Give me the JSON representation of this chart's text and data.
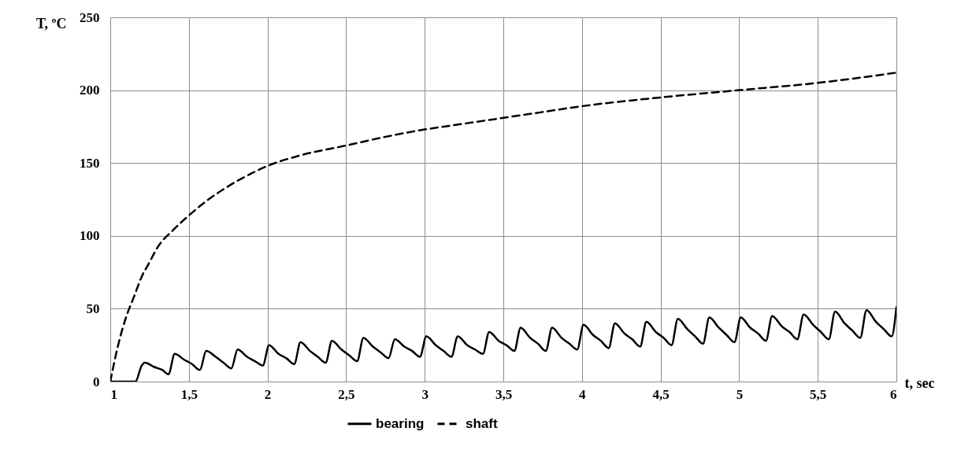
{
  "chart_data": {
    "type": "line",
    "xlabel": "t, sec",
    "ylabel": "T, ºC",
    "xlim": [
      1,
      6
    ],
    "xticks": [
      1,
      {
        "value": 1.5,
        "label": "1,5"
      },
      2,
      {
        "value": 2.5,
        "label": "2,5"
      },
      3,
      {
        "value": 3.5,
        "label": "3,5"
      },
      4,
      {
        "value": 4.5,
        "label": "4,5"
      },
      5,
      {
        "value": 5.5,
        "label": "5,5"
      },
      6
    ],
    "ylim": [
      0,
      250
    ],
    "yticks": [
      0,
      50,
      100,
      150,
      200,
      250
    ],
    "grid": true,
    "legend": "bottom",
    "marker": "none",
    "series": [
      {
        "name": "bearing",
        "color": "#000000",
        "line_style": "solid",
        "x": [
          1,
          1.16,
          1.2,
          1.22,
          1.28,
          1.33,
          1.37,
          1.41,
          1.47,
          1.52,
          1.57,
          1.61,
          1.67,
          1.72,
          1.77,
          1.81,
          1.87,
          1.92,
          1.97,
          2.01,
          2.07,
          2.12,
          2.17,
          2.21,
          2.27,
          2.32,
          2.37,
          2.41,
          2.47,
          2.52,
          2.57,
          2.61,
          2.67,
          2.72,
          2.77,
          2.81,
          2.87,
          2.92,
          2.97,
          3.01,
          3.07,
          3.12,
          3.17,
          3.21,
          3.27,
          3.32,
          3.37,
          3.41,
          3.47,
          3.52,
          3.57,
          3.61,
          3.67,
          3.72,
          3.77,
          3.81,
          3.87,
          3.92,
          3.97,
          4.01,
          4.07,
          4.12,
          4.17,
          4.21,
          4.27,
          4.32,
          4.37,
          4.41,
          4.47,
          4.52,
          4.57,
          4.61,
          4.67,
          4.72,
          4.77,
          4.81,
          4.87,
          4.92,
          4.97,
          5.01,
          5.07,
          5.12,
          5.17,
          5.21,
          5.27,
          5.32,
          5.37,
          5.41,
          5.47,
          5.52,
          5.57,
          5.61,
          5.67,
          5.72,
          5.77,
          5.81,
          5.87,
          5.92,
          5.97,
          6
        ],
        "values": [
          0,
          0,
          11,
          13,
          10,
          8,
          5,
          19,
          15,
          12,
          8,
          21,
          17,
          13,
          9,
          22,
          17,
          14,
          11,
          25,
          19,
          16,
          12,
          27,
          21,
          17,
          13,
          28,
          22,
          18,
          14,
          30,
          24,
          20,
          16,
          29,
          24,
          21,
          17,
          31,
          25,
          21,
          17,
          31,
          25,
          22,
          19,
          34,
          28,
          25,
          21,
          37,
          30,
          26,
          21,
          37,
          30,
          26,
          22,
          39,
          32,
          28,
          23,
          40,
          33,
          29,
          24,
          41,
          34,
          30,
          25,
          43,
          36,
          31,
          26,
          44,
          37,
          32,
          27,
          44,
          37,
          33,
          28,
          45,
          38,
          34,
          29,
          46,
          39,
          34,
          29,
          48,
          40,
          35,
          30,
          49,
          41,
          36,
          31,
          51
        ]
      },
      {
        "name": "shaft",
        "color": "#000000",
        "line_style": "dashed",
        "x": [
          1,
          1.05,
          1.1,
          1.15,
          1.2,
          1.25,
          1.3,
          1.4,
          1.5,
          1.6,
          1.75,
          1.9,
          2,
          2.2,
          2.5,
          2.75,
          3,
          3.25,
          3.5,
          3.75,
          4,
          4.5,
          5,
          5.5,
          6
        ],
        "values": [
          0,
          25,
          44,
          58,
          72,
          82,
          92,
          104,
          114,
          123,
          134,
          143,
          148,
          155,
          162,
          168,
          173,
          177,
          181,
          185,
          189,
          195,
          200,
          205,
          212
        ]
      }
    ]
  }
}
